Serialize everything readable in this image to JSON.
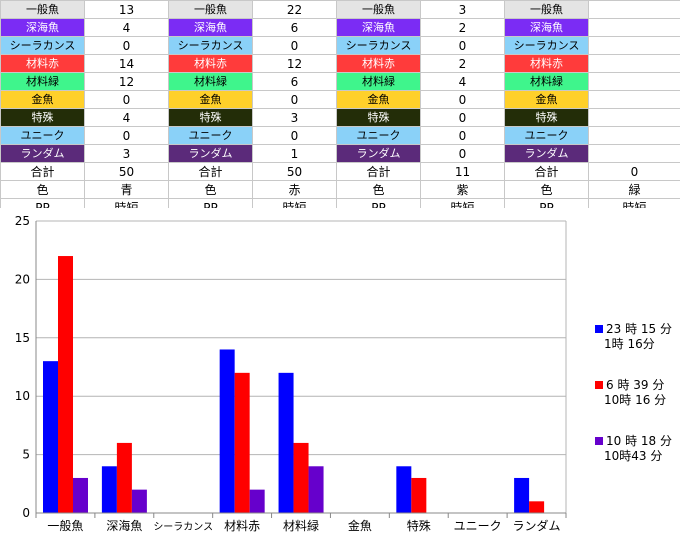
{
  "table": {
    "categories": [
      {
        "label": "一般魚",
        "bg": "#e4e4e4",
        "fg": "#000000"
      },
      {
        "label": "深海魚",
        "bg": "#7b2cf4",
        "fg": "#ffffff"
      },
      {
        "label": "シーラカンス",
        "bg": "#8ad1f8",
        "fg": "#000000"
      },
      {
        "label": "材料赤",
        "bg": "#ff3b3b",
        "fg": "#ffffff"
      },
      {
        "label": "材料緑",
        "bg": "#3ff58c",
        "fg": "#000000"
      },
      {
        "label": "金魚",
        "bg": "#ffd02a",
        "fg": "#000000"
      },
      {
        "label": "特殊",
        "bg": "#232d08",
        "fg": "#ffffff"
      },
      {
        "label": "ユニーク",
        "bg": "#8ad1f8",
        "fg": "#000000"
      },
      {
        "label": "ランダム",
        "bg": "#5b2a7a",
        "fg": "#ffffff"
      }
    ],
    "groups": [
      {
        "values": [
          "13",
          "4",
          "0",
          "14",
          "12",
          "0",
          "4",
          "0",
          "3"
        ],
        "total": "50",
        "color": "青",
        "pp": "時短"
      },
      {
        "values": [
          "22",
          "6",
          "0",
          "12",
          "6",
          "0",
          "3",
          "0",
          "1"
        ],
        "total": "50",
        "color": "赤",
        "pp": "時短"
      },
      {
        "values": [
          "3",
          "2",
          "0",
          "2",
          "4",
          "0",
          "0",
          "0",
          "0"
        ],
        "total": "11",
        "color": "紫",
        "pp": "時短"
      },
      {
        "values": [
          "",
          "",
          "",
          "",
          "",
          "",
          "",
          "",
          ""
        ],
        "total": "0",
        "color": "緑",
        "pp": "時短"
      }
    ],
    "total_label": "合計",
    "color_label": "色",
    "pp_label": "PP"
  },
  "chart_data": {
    "type": "bar",
    "categories": [
      "一般魚",
      "深海魚",
      "シーラカンス",
      "材料赤",
      "材料緑",
      "金魚",
      "特殊",
      "ユニーク",
      "ランダム"
    ],
    "series": [
      {
        "name": "23 時 15 分\n1時 16分",
        "values": [
          13,
          4,
          0,
          14,
          12,
          0,
          4,
          0,
          3
        ],
        "color": "#0000ff"
      },
      {
        "name": "6 時 39 分\n10時 16 分",
        "values": [
          22,
          6,
          0,
          12,
          6,
          0,
          3,
          0,
          1
        ],
        "color": "#ff0000"
      },
      {
        "name": "10 時 18 分\n10時43 分",
        "values": [
          3,
          2,
          0,
          2,
          4,
          0,
          0,
          0,
          0
        ],
        "color": "#6600cc"
      }
    ],
    "ylim": [
      0,
      25
    ],
    "yticks": [
      "0",
      "5",
      "10",
      "15",
      "20",
      "25"
    ],
    "grid": true,
    "legend": "right"
  }
}
